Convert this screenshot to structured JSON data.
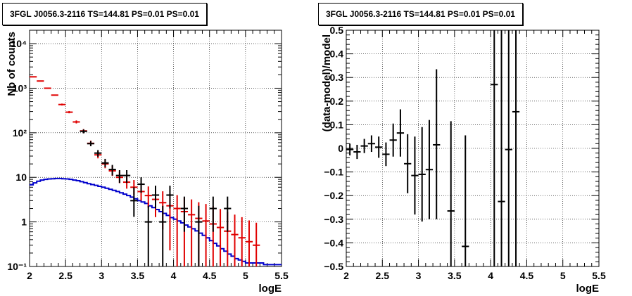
{
  "chart_data": [
    {
      "type": "line",
      "title": "3FGL J0056.3-2116 TS=144.81 PS=0.01 PS=0.01",
      "xlabel": "logE",
      "ylabel": "Nb of counts",
      "xlim": [
        2,
        5.5
      ],
      "ylim": [
        0.1,
        20000
      ],
      "log_y": true,
      "grid": true,
      "x_ticks": [
        "2",
        "2.5",
        "3",
        "3.5",
        "4",
        "4.5",
        "5",
        "5.5"
      ],
      "y_ticks": [
        {
          "value": 0.1,
          "label": "10⁻¹"
        },
        {
          "value": 1,
          "label": "1"
        },
        {
          "value": 10,
          "label": "10"
        },
        {
          "value": 100,
          "label": "10²"
        },
        {
          "value": 1000,
          "label": "10³"
        },
        {
          "value": 10000,
          "label": "10⁴"
        }
      ],
      "series": [
        {
          "kind": "model",
          "color": "#e00000",
          "points": [
            {
              "x": 2.05,
              "y": 1800
            },
            {
              "x": 2.15,
              "y": 1450
            },
            {
              "x": 2.25,
              "y": 1000
            },
            {
              "x": 2.35,
              "y": 700
            },
            {
              "x": 2.45,
              "y": 430
            },
            {
              "x": 2.55,
              "y": 290
            },
            {
              "x": 2.65,
              "y": 175
            },
            {
              "x": 2.75,
              "y": 110
            },
            {
              "x": 2.85,
              "y": 58
            },
            {
              "x": 2.95,
              "y": 32
            },
            {
              "x": 3.05,
              "y": 20
            },
            {
              "x": 3.15,
              "y": 14
            },
            {
              "x": 3.25,
              "y": 10
            },
            {
              "x": 3.35,
              "y": 7.8
            },
            {
              "x": 3.45,
              "y": 6
            },
            {
              "x": 3.55,
              "y": 4.8
            },
            {
              "x": 3.65,
              "y": 3.9
            },
            {
              "x": 3.75,
              "y": 3.2
            },
            {
              "x": 3.85,
              "y": 2.7
            },
            {
              "x": 3.95,
              "y": 2.3
            },
            {
              "x": 4.05,
              "y": 2
            },
            {
              "x": 4.15,
              "y": 1.7
            },
            {
              "x": 4.25,
              "y": 1.45
            },
            {
              "x": 4.35,
              "y": 1.2
            },
            {
              "x": 4.45,
              "y": 1.05
            },
            {
              "x": 4.55,
              "y": 0.9
            },
            {
              "x": 4.65,
              "y": 0.75
            },
            {
              "x": 4.75,
              "y": 0.62
            },
            {
              "x": 4.85,
              "y": 0.52
            },
            {
              "x": 4.95,
              "y": 0.44
            },
            {
              "x": 5.05,
              "y": 0.36
            },
            {
              "x": 5.15,
              "y": 0.3
            }
          ],
          "err_low": [
            1.0,
            1.0,
            1.0,
            1.0,
            1.05,
            1.06,
            1.08,
            1.1,
            1.15,
            1.2,
            1.25,
            1.3,
            1.35,
            1.4,
            1.5,
            1.6,
            1.9,
            2.5,
            4,
            10,
            60,
            60,
            60,
            60,
            60,
            60,
            60,
            60,
            60,
            60,
            60,
            60
          ],
          "err_high": [
            1.0,
            1.0,
            1.0,
            1.0,
            1.05,
            1.06,
            1.08,
            1.1,
            1.15,
            1.2,
            1.25,
            1.3,
            1.35,
            1.4,
            1.45,
            1.5,
            1.6,
            1.7,
            1.8,
            1.9,
            2.0,
            2.1,
            2.2,
            2.3,
            2.4,
            2.5,
            2.6,
            2.7,
            2.8,
            2.9,
            3.0,
            3.2
          ]
        },
        {
          "kind": "data",
          "color": "#000000",
          "points": [
            {
              "x": 2.75,
              "y": 108,
              "lo": 97,
              "hi": 119
            },
            {
              "x": 2.85,
              "y": 57,
              "lo": 50,
              "hi": 65
            },
            {
              "x": 2.95,
              "y": 35,
              "lo": 29,
              "hi": 41
            },
            {
              "x": 3.05,
              "y": 21,
              "lo": 17,
              "hi": 26
            },
            {
              "x": 3.15,
              "y": 15,
              "lo": 11,
              "hi": 19
            },
            {
              "x": 3.25,
              "y": 11,
              "lo": 7.5,
              "hi": 14.5
            },
            {
              "x": 3.35,
              "y": 11,
              "lo": 7.5,
              "hi": 14.5
            },
            {
              "x": 3.45,
              "y": 3,
              "lo": 1.3,
              "hi": 6
            },
            {
              "x": 3.55,
              "y": 7,
              "lo": 4.5,
              "hi": 10
            },
            {
              "x": 3.65,
              "y": 1,
              "lo": 0.1,
              "hi": 2.3
            },
            {
              "x": 3.75,
              "y": 4,
              "lo": 2,
              "hi": 6.5
            },
            {
              "x": 3.85,
              "y": 1,
              "lo": 0.1,
              "hi": 2.3
            },
            {
              "x": 3.95,
              "y": 4,
              "lo": 2,
              "hi": 6.5
            },
            {
              "x": 4.15,
              "y": 2,
              "lo": 0.6,
              "hi": 3.7
            },
            {
              "x": 4.35,
              "y": 1,
              "lo": 0.1,
              "hi": 2.3
            },
            {
              "x": 4.55,
              "y": 2,
              "lo": 0.6,
              "hi": 3.7
            },
            {
              "x": 4.75,
              "y": 2,
              "lo": 0.6,
              "hi": 3.7
            }
          ]
        },
        {
          "kind": "background",
          "color": "#0000cc",
          "step_edges": [
            2.0,
            2.05,
            2.1,
            2.15,
            2.2,
            2.25,
            2.3,
            2.35,
            2.4,
            2.45,
            2.5,
            2.55,
            2.6,
            2.65,
            2.7,
            2.75,
            2.8,
            2.85,
            2.9,
            2.95,
            3.0,
            3.05,
            3.1,
            3.15,
            3.2,
            3.25,
            3.3,
            3.35,
            3.4,
            3.45,
            3.5,
            3.55,
            3.6,
            3.65,
            3.7,
            3.75,
            3.8,
            3.85,
            3.9,
            3.95,
            4.0,
            4.05,
            4.1,
            4.15,
            4.2,
            4.25,
            4.3,
            4.35,
            4.4,
            4.45,
            4.5,
            4.55,
            4.6,
            4.65,
            4.7,
            4.75,
            4.8,
            4.85,
            4.9,
            4.95,
            5.0,
            5.05,
            5.1,
            5.15,
            5.2,
            5.25,
            5.5
          ],
          "step_values": [
            6.8,
            7.5,
            8.2,
            8.7,
            9.0,
            9.2,
            9.3,
            9.4,
            9.4,
            9.3,
            9.2,
            9.0,
            8.7,
            8.4,
            8.0,
            7.6,
            7.2,
            6.9,
            6.6,
            6.3,
            6.0,
            5.7,
            5.4,
            5.1,
            4.8,
            4.5,
            4.2,
            3.9,
            3.6,
            3.3,
            3.0,
            2.8,
            2.6,
            2.3,
            2.1,
            1.9,
            1.7,
            1.55,
            1.4,
            1.25,
            1.15,
            1.05,
            0.95,
            0.85,
            0.77,
            0.7,
            0.63,
            0.56,
            0.5,
            0.44,
            0.38,
            0.33,
            0.29,
            0.25,
            0.22,
            0.19,
            0.17,
            0.15,
            0.14,
            0.13,
            0.12,
            0.12,
            0.12,
            0.12,
            0.12,
            0.11
          ]
        }
      ]
    },
    {
      "type": "scatter",
      "title": "3FGL J0056.3-2116 TS=144.81 PS=0.01 PS=0.01",
      "xlabel": "logE",
      "ylabel": "(data-model)/model",
      "xlim": [
        2,
        5.5
      ],
      "ylim": [
        -0.5,
        0.5
      ],
      "grid": true,
      "x_ticks": [
        "2",
        "2.5",
        "3",
        "3.5",
        "4",
        "4.5",
        "5",
        "5.5"
      ],
      "y_ticks": [
        "−0.5",
        "−0.4",
        "−0.3",
        "−0.2",
        "−0.1",
        "0",
        "0.1",
        "0.2",
        "0.3",
        "0.4",
        "0.5"
      ],
      "series": [
        {
          "color": "#000000",
          "points": [
            {
              "x": 2.05,
              "y": -0.005,
              "lo": -0.03,
              "hi": 0.02
            },
            {
              "x": 2.15,
              "y": -0.015,
              "lo": -0.045,
              "hi": 0.015
            },
            {
              "x": 2.25,
              "y": 0.01,
              "lo": -0.02,
              "hi": 0.04
            },
            {
              "x": 2.35,
              "y": 0.02,
              "lo": -0.015,
              "hi": 0.055
            },
            {
              "x": 2.45,
              "y": 0.005,
              "lo": -0.04,
              "hi": 0.05
            },
            {
              "x": 2.55,
              "y": -0.025,
              "lo": -0.075,
              "hi": 0.025
            },
            {
              "x": 2.65,
              "y": 0.035,
              "lo": -0.035,
              "hi": 0.105
            },
            {
              "x": 2.75,
              "y": 0.065,
              "lo": -0.035,
              "hi": 0.165
            },
            {
              "x": 2.85,
              "y": -0.065,
              "lo": -0.19,
              "hi": 0.06
            },
            {
              "x": 2.95,
              "y": -0.115,
              "lo": -0.28,
              "hi": 0.05
            },
            {
              "x": 3.05,
              "y": -0.11,
              "lo": -0.31,
              "hi": 0.09
            },
            {
              "x": 3.15,
              "y": -0.09,
              "lo": -0.3,
              "hi": 0.12
            },
            {
              "x": 3.25,
              "y": 0.015,
              "lo": -0.3,
              "hi": 0.335
            },
            {
              "x": 3.45,
              "y": -0.265,
              "lo": -0.55,
              "hi": 0.115
            },
            {
              "x": 3.65,
              "y": -0.415,
              "lo": -0.55,
              "hi": 0.055
            },
            {
              "x": 4.05,
              "y": 0.27,
              "lo": -0.55,
              "hi": 0.55
            },
            {
              "x": 4.15,
              "y": -0.225,
              "lo": -0.55,
              "hi": 0.55
            },
            {
              "x": 4.25,
              "y": -0.005,
              "lo": -0.55,
              "hi": 0.55
            },
            {
              "x": 4.35,
              "y": 0.155,
              "lo": -0.55,
              "hi": 0.55
            }
          ]
        }
      ]
    }
  ]
}
